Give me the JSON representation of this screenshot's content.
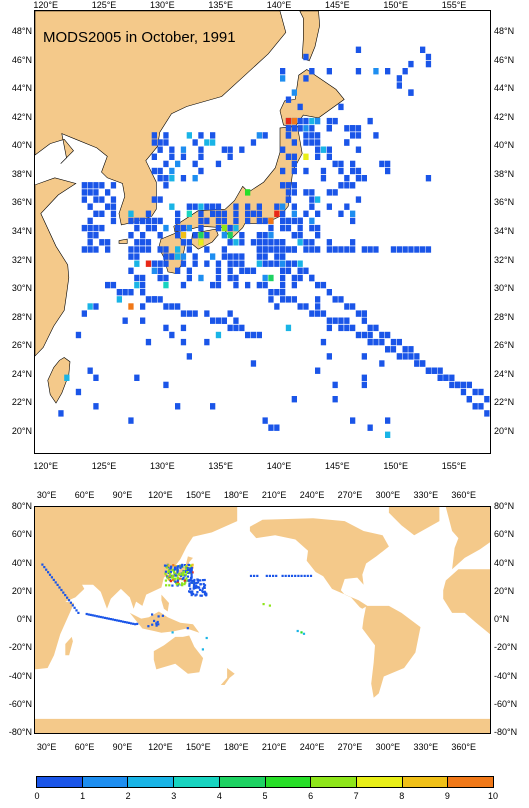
{
  "top_map": {
    "title": "MODS2005 in October, 1991",
    "lon_labels": [
      "120°E",
      "125°E",
      "130°E",
      "135°E",
      "140°E",
      "145°E",
      "150°E",
      "155°E"
    ],
    "lat_labels": [
      "48°N",
      "46°N",
      "44°N",
      "42°N",
      "40°N",
      "38°N",
      "36°N",
      "34°N",
      "32°N",
      "30°N",
      "28°N",
      "26°N",
      "24°N",
      "22°N",
      "20°N"
    ],
    "lon_range": [
      119,
      158
    ],
    "lat_range": [
      18.5,
      49.5
    ]
  },
  "bottom_map": {
    "lon_labels": [
      "30°E",
      "60°E",
      "90°E",
      "120°E",
      "150°E",
      "180°E",
      "210°E",
      "240°E",
      "270°E",
      "300°E",
      "330°E",
      "360°E"
    ],
    "lat_labels": [
      "80°N",
      "60°N",
      "40°N",
      "20°N",
      "0°N",
      "-20°N",
      "-40°N",
      "-60°N",
      "-80°N"
    ],
    "lon_range": [
      20,
      380
    ],
    "lat_range": [
      -80,
      80
    ]
  },
  "colorbar": {
    "labels": [
      "0",
      "1",
      "2",
      "3",
      "4",
      "5",
      "6",
      "7",
      "8",
      "9",
      "10"
    ],
    "colors": [
      "#1a55e8",
      "#1e8ef0",
      "#19b4e6",
      "#18d4c0",
      "#1ed262",
      "#28de28",
      "#8ee51a",
      "#e8ee18",
      "#f0c018",
      "#f07818",
      "#e82818"
    ]
  },
  "colors": {
    "land": "#f4c98a",
    "sea": "#ffffff",
    "border": "#000000"
  }
}
